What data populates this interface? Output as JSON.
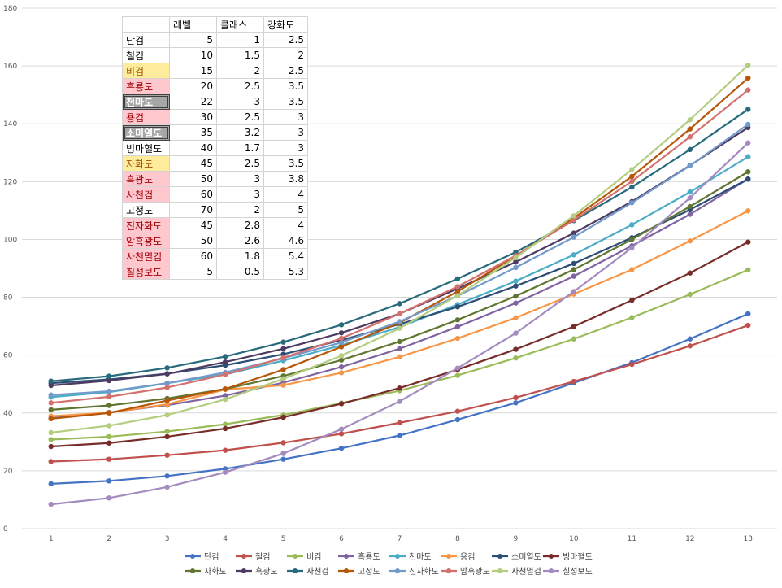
{
  "table": {
    "headers": [
      "",
      "레벨",
      "클래스",
      "강화도"
    ],
    "rows": [
      {
        "name": "단검",
        "level": "5",
        "class": "1",
        "enhance": "2.5",
        "style": ""
      },
      {
        "name": "철검",
        "level": "10",
        "class": "1.5",
        "enhance": "2",
        "style": ""
      },
      {
        "name": "비검",
        "level": "15",
        "class": "2",
        "enhance": "2.5",
        "style": "yellow"
      },
      {
        "name": "흑룡도",
        "level": "20",
        "class": "2.5",
        "enhance": "3.5",
        "style": "pink"
      },
      {
        "name": "천마도",
        "level": "22",
        "class": "3",
        "enhance": "3.5",
        "style": "gray"
      },
      {
        "name": "용검",
        "level": "30",
        "class": "2.5",
        "enhance": "3",
        "style": "pink"
      },
      {
        "name": "소미열도",
        "level": "35",
        "class": "3.2",
        "enhance": "3",
        "style": "gray"
      },
      {
        "name": "빙마혈도",
        "level": "40",
        "class": "1.7",
        "enhance": "3",
        "style": ""
      },
      {
        "name": "자화도",
        "level": "45",
        "class": "2.5",
        "enhance": "3.5",
        "style": "yellow"
      },
      {
        "name": "흑광도",
        "level": "50",
        "class": "3",
        "enhance": "3.8",
        "style": "pink"
      },
      {
        "name": "사천검",
        "level": "60",
        "class": "3",
        "enhance": "4",
        "style": "pink"
      },
      {
        "name": "고정도",
        "level": "70",
        "class": "2",
        "enhance": "5",
        "style": ""
      },
      {
        "name": "진자화도",
        "level": "45",
        "class": "2.8",
        "enhance": "4",
        "style": "pink"
      },
      {
        "name": "암흑광도",
        "level": "50",
        "class": "2.6",
        "enhance": "4.6",
        "style": "pink"
      },
      {
        "name": "사천멸검",
        "level": "60",
        "class": "1.8",
        "enhance": "5.4",
        "style": "pink"
      },
      {
        "name": "칠성보도",
        "level": "5",
        "class": "0.5",
        "enhance": "5.3",
        "style": "pink"
      }
    ]
  },
  "chart_data": {
    "type": "line",
    "title": "",
    "xlabel": "",
    "ylabel": "",
    "x": [
      1,
      2,
      3,
      4,
      5,
      6,
      7,
      8,
      9,
      10,
      11,
      12,
      13
    ],
    "ylim": [
      0,
      180
    ],
    "yticks": [
      0,
      20,
      40,
      60,
      80,
      100,
      120,
      140,
      160,
      180
    ],
    "grid": "horizontal",
    "legend_position": "bottom",
    "series": [
      {
        "name": "단검",
        "color": "#4472c4",
        "values": [
          15.5,
          16.5,
          18.2,
          20.7,
          24,
          27.8,
          32.2,
          37.7,
          43.5,
          50.4,
          57.4,
          65.6,
          74.3
        ]
      },
      {
        "name": "철검",
        "color": "#c0504d",
        "values": [
          23.2,
          24,
          25.4,
          27.1,
          29.7,
          32.8,
          36.6,
          40.6,
          45.3,
          50.9,
          56.8,
          63.2,
          70.3
        ]
      },
      {
        "name": "비검",
        "color": "#9bbb59",
        "values": [
          30.8,
          31.8,
          33.6,
          36.1,
          39.3,
          43.4,
          47.7,
          53,
          59,
          65.6,
          73,
          81,
          89.5
        ]
      },
      {
        "name": "흑룡도",
        "color": "#8064a2",
        "values": [
          38.2,
          40.2,
          42.7,
          46,
          50.5,
          55.9,
          62.2,
          69.8,
          78,
          87.3,
          97.8,
          108.7,
          120.9
        ]
      },
      {
        "name": "천마도",
        "color": "#4bacc6",
        "values": [
          45.5,
          47.2,
          50.3,
          53.3,
          58.1,
          63.4,
          69.7,
          77.5,
          85.6,
          94.7,
          105.1,
          116.4,
          128.6
        ]
      },
      {
        "name": "용검",
        "color": "#f79646",
        "values": [
          38.9,
          40.1,
          43,
          48.1,
          49.6,
          53.9,
          59.4,
          65.8,
          72.9,
          81.1,
          89.6,
          99.5,
          109.9
        ]
      },
      {
        "name": "소미열도",
        "color": "#2c4d75",
        "values": [
          50.3,
          51.6,
          53.6,
          56.5,
          60.3,
          65.2,
          70.7,
          76.7,
          83.9,
          91.7,
          100.6,
          110.3,
          120.9
        ]
      },
      {
        "name": "빙마혈도",
        "color": "#772c2a",
        "values": [
          28.4,
          29.6,
          31.8,
          34.6,
          38.5,
          43.2,
          48.6,
          55,
          62,
          69.9,
          79,
          88.4,
          99.1
        ]
      },
      {
        "name": "자화도",
        "color": "#5f7530",
        "values": [
          41.1,
          42.6,
          45,
          48.3,
          52.8,
          58.3,
          64.7,
          72.2,
          80.4,
          89.6,
          100,
          111.4,
          123.4
        ]
      },
      {
        "name": "흑광도",
        "color": "#4d3b62",
        "values": [
          49.5,
          51.2,
          53.5,
          57.6,
          62.2,
          67.7,
          74.3,
          83,
          92.2,
          102.2,
          113.1,
          125.6,
          138.7
        ]
      },
      {
        "name": "사천검",
        "color": "#276a7c",
        "values": [
          51,
          52.7,
          55.6,
          59.5,
          64.5,
          70.5,
          77.8,
          86.4,
          95.6,
          106.5,
          118.1,
          131.1,
          145
        ]
      },
      {
        "name": "고정도",
        "color": "#b65708",
        "values": [
          38,
          40,
          44.3,
          48.3,
          55,
          62.9,
          71.2,
          82,
          94.3,
          107.4,
          121.8,
          138.2,
          155.8
        ]
      },
      {
        "name": "진자화도",
        "color": "#729aca",
        "values": [
          46.2,
          47.5,
          50.3,
          54,
          58.9,
          64.4,
          71.6,
          80.5,
          90.3,
          100.8,
          112.7,
          125.5,
          139.8
        ]
      },
      {
        "name": "암흑광도",
        "color": "#d4706d",
        "values": [
          43.5,
          45.6,
          48.8,
          53.3,
          59.1,
          65.8,
          74.3,
          83.7,
          94.4,
          106.7,
          120.1,
          135.5,
          151.7
        ]
      },
      {
        "name": "사천멸검",
        "color": "#b3cd81",
        "values": [
          33.2,
          35.6,
          39.3,
          44.7,
          51.8,
          59.8,
          69.3,
          80.6,
          93.7,
          108.2,
          124.2,
          141.4,
          160.3
        ]
      },
      {
        "name": "칠성보도",
        "color": "#a38bbf",
        "values": [
          8.4,
          10.6,
          14.4,
          19.5,
          26,
          34.4,
          44,
          55.5,
          67.6,
          82,
          97.1,
          114.4,
          133.4
        ]
      }
    ]
  }
}
